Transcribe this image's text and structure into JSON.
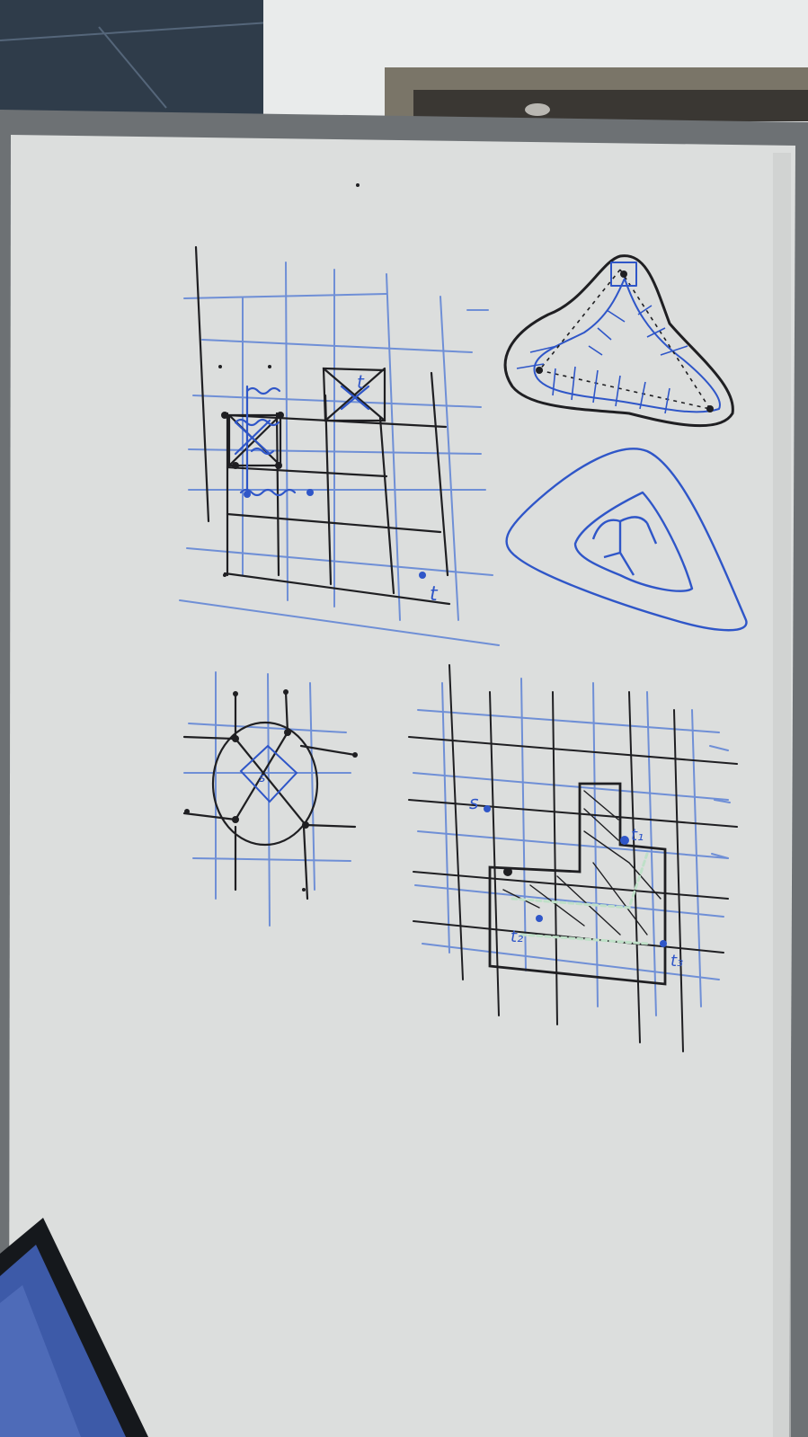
{
  "scene": {
    "subject": "whiteboard-photo",
    "colors": {
      "ceiling": "#2f3c4a",
      "wall": "#e9ebeb",
      "door_frame": "#7a7568",
      "board": "#dcdedd",
      "board_frame": "#6d7174",
      "ink_black": "#1f1f22",
      "ink_blue": "#2f56c8",
      "ink_light_blue": "#6f8fd6",
      "laptop": "#15181c",
      "laptop_screen": "#3d5aa8"
    }
  },
  "labels": {
    "top_grid_t": "t",
    "top_grid_box_t": "t",
    "circle_s": "s",
    "lower_grid_s": "s",
    "lower_grid_t1": "t₁",
    "lower_grid_t2": "t₂",
    "lower_grid_t3": "t₃"
  }
}
